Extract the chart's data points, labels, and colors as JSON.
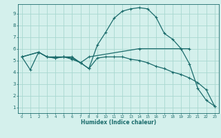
{
  "title": "",
  "xlabel": "Humidex (Indice chaleur)",
  "ylabel": "",
  "bg_color": "#d4f0ec",
  "grid_color": "#a8d8d0",
  "line_color": "#1a6b6b",
  "xlim": [
    -0.5,
    23.5
  ],
  "ylim": [
    0.5,
    9.8
  ],
  "xticks": [
    0,
    1,
    2,
    3,
    4,
    5,
    6,
    7,
    8,
    9,
    10,
    11,
    12,
    13,
    14,
    15,
    16,
    17,
    18,
    19,
    20,
    21,
    22,
    23
  ],
  "yticks": [
    1,
    2,
    3,
    4,
    5,
    6,
    7,
    8,
    9
  ],
  "lines": [
    {
      "x": [
        0,
        1,
        2,
        3,
        4,
        5,
        6,
        7,
        8,
        9,
        10,
        11,
        12,
        13,
        14,
        15,
        16,
        17,
        18,
        19,
        20,
        21,
        22,
        23
      ],
      "y": [
        5.3,
        4.2,
        5.7,
        5.3,
        5.2,
        5.3,
        5.2,
        4.8,
        4.3,
        6.3,
        7.4,
        8.6,
        9.2,
        9.4,
        9.5,
        9.4,
        8.7,
        7.3,
        6.8,
        6.0,
        4.7,
        2.6,
        1.6,
        1.1
      ]
    },
    {
      "x": [
        0,
        2,
        3,
        4,
        5,
        6,
        7,
        8,
        14,
        20
      ],
      "y": [
        5.3,
        5.7,
        5.3,
        5.3,
        5.3,
        5.3,
        4.8,
        5.3,
        6.0,
        6.0
      ]
    },
    {
      "x": [
        0,
        2,
        3,
        4,
        5,
        6,
        7,
        8,
        9,
        10,
        11,
        12,
        13,
        14,
        15,
        16,
        17,
        18,
        19,
        20,
        21,
        22,
        23
      ],
      "y": [
        5.3,
        5.7,
        5.3,
        5.2,
        5.3,
        5.1,
        4.8,
        4.3,
        5.2,
        5.3,
        5.3,
        5.3,
        5.1,
        5.0,
        4.8,
        4.5,
        4.3,
        4.0,
        3.8,
        3.5,
        3.1,
        2.5,
        1.1
      ]
    }
  ]
}
